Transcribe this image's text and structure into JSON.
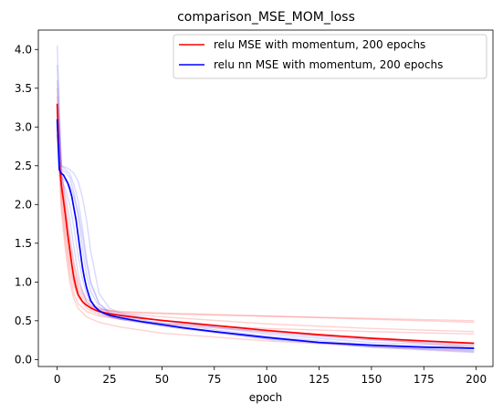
{
  "chart_data": {
    "type": "line",
    "title": "comparison_MSE_MOM_loss",
    "xlabel": "epoch",
    "ylabel": "",
    "xlim": [
      -9,
      208
    ],
    "ylim": [
      -0.09,
      4.25
    ],
    "xticks": [
      "0",
      "25",
      "50",
      "75",
      "100",
      "125",
      "150",
      "175",
      "200"
    ],
    "yticks": [
      "0.0",
      "0.5",
      "1.0",
      "1.5",
      "2.0",
      "2.5",
      "3.0",
      "3.5",
      "4.0"
    ],
    "grid": false,
    "legend_position": "top-right",
    "colors": {
      "red": "#ff0000",
      "blue": "#0000ff",
      "faint_red": "#ff6666",
      "faint_blue": "#6666ff"
    },
    "series": [
      {
        "name": "relu MSE with momentum, 200 epochs",
        "color": "#ff0000",
        "x": [
          0,
          1,
          2,
          3,
          4,
          5,
          6,
          7,
          8,
          9,
          10,
          12,
          14,
          16,
          18,
          20,
          25,
          30,
          40,
          50,
          60,
          75,
          100,
          125,
          150,
          175,
          199
        ],
        "y": [
          3.3,
          2.55,
          2.25,
          2.05,
          1.85,
          1.62,
          1.42,
          1.22,
          1.05,
          0.93,
          0.84,
          0.75,
          0.7,
          0.665,
          0.64,
          0.62,
          0.59,
          0.57,
          0.535,
          0.505,
          0.48,
          0.44,
          0.375,
          0.32,
          0.275,
          0.24,
          0.21
        ]
      },
      {
        "name": "relu nn MSE with momentum, 200 epochs",
        "color": "#0000ff",
        "x": [
          0,
          1,
          2,
          3,
          4,
          5,
          6,
          7,
          8,
          9,
          10,
          11,
          12,
          13,
          14,
          15,
          16,
          18,
          20,
          22,
          25,
          30,
          40,
          50,
          60,
          75,
          100,
          125,
          150,
          175,
          199
        ],
        "y": [
          3.1,
          2.45,
          2.4,
          2.38,
          2.33,
          2.28,
          2.2,
          2.1,
          1.95,
          1.8,
          1.6,
          1.4,
          1.2,
          1.05,
          0.93,
          0.84,
          0.76,
          0.68,
          0.63,
          0.6,
          0.57,
          0.54,
          0.49,
          0.45,
          0.41,
          0.36,
          0.285,
          0.22,
          0.185,
          0.16,
          0.145
        ]
      }
    ],
    "faint_runs": {
      "red": [
        {
          "x": [
            0,
            2,
            4,
            6,
            8,
            10,
            14,
            20,
            30,
            50,
            100,
            150,
            199
          ],
          "y": [
            3.0,
            2.1,
            1.6,
            1.2,
            0.95,
            0.8,
            0.7,
            0.64,
            0.61,
            0.59,
            0.56,
            0.52,
            0.48
          ]
        },
        {
          "x": [
            0,
            2,
            4,
            6,
            8,
            10,
            14,
            20,
            30,
            50,
            100,
            150,
            199
          ],
          "y": [
            3.4,
            2.3,
            1.8,
            1.4,
            1.1,
            0.9,
            0.72,
            0.65,
            0.62,
            0.6,
            0.56,
            0.53,
            0.5
          ]
        },
        {
          "x": [
            0,
            2,
            4,
            6,
            8,
            10,
            14,
            20,
            30,
            50,
            100,
            150,
            199
          ],
          "y": [
            3.2,
            2.0,
            1.5,
            1.1,
            0.85,
            0.72,
            0.62,
            0.56,
            0.52,
            0.46,
            0.36,
            0.26,
            0.18
          ]
        },
        {
          "x": [
            0,
            2,
            4,
            6,
            8,
            10,
            14,
            20,
            30,
            50,
            100,
            150,
            199
          ],
          "y": [
            3.5,
            2.4,
            1.9,
            1.5,
            1.2,
            0.95,
            0.75,
            0.63,
            0.57,
            0.5,
            0.38,
            0.27,
            0.15
          ]
        },
        {
          "x": [
            0,
            2,
            4,
            6,
            8,
            10,
            14,
            20,
            30,
            50,
            100,
            150,
            199
          ],
          "y": [
            2.9,
            1.9,
            1.4,
            1.0,
            0.78,
            0.66,
            0.55,
            0.48,
            0.42,
            0.34,
            0.24,
            0.17,
            0.1
          ]
        },
        {
          "x": [
            0,
            2,
            4,
            6,
            8,
            10,
            14,
            20,
            30,
            50,
            100,
            150,
            199
          ],
          "y": [
            3.1,
            2.2,
            1.7,
            1.3,
            1.0,
            0.82,
            0.66,
            0.58,
            0.52,
            0.47,
            0.4,
            0.36,
            0.33
          ]
        },
        {
          "x": [
            0,
            2,
            4,
            6,
            8,
            10,
            14,
            20,
            30,
            50,
            100,
            150,
            199
          ],
          "y": [
            3.3,
            2.5,
            2.0,
            1.6,
            1.25,
            1.0,
            0.78,
            0.66,
            0.6,
            0.55,
            0.46,
            0.4,
            0.36
          ]
        }
      ],
      "blue": [
        {
          "x": [
            0,
            2,
            4,
            6,
            8,
            10,
            12,
            14,
            16,
            20,
            25,
            30,
            50,
            100,
            150,
            199
          ],
          "y": [
            4.05,
            2.5,
            2.45,
            2.4,
            2.25,
            2.05,
            1.7,
            1.3,
            1.0,
            0.72,
            0.62,
            0.58,
            0.5,
            0.33,
            0.22,
            0.17
          ]
        },
        {
          "x": [
            0,
            2,
            4,
            6,
            8,
            10,
            12,
            14,
            16,
            20,
            25,
            30,
            50,
            100,
            150,
            199
          ],
          "y": [
            3.6,
            2.45,
            2.42,
            2.35,
            2.15,
            1.85,
            1.45,
            1.1,
            0.88,
            0.68,
            0.6,
            0.56,
            0.47,
            0.3,
            0.19,
            0.14
          ]
        },
        {
          "x": [
            0,
            2,
            4,
            6,
            8,
            10,
            12,
            14,
            16,
            20,
            25,
            30,
            50,
            100,
            150,
            199
          ],
          "y": [
            3.2,
            2.3,
            2.2,
            2.0,
            1.7,
            1.35,
            1.05,
            0.85,
            0.74,
            0.63,
            0.56,
            0.52,
            0.43,
            0.26,
            0.16,
            0.11
          ]
        },
        {
          "x": [
            0,
            2,
            4,
            6,
            8,
            10,
            12,
            14,
            16,
            20,
            25,
            30,
            50,
            100,
            150,
            199
          ],
          "y": [
            2.9,
            2.35,
            2.3,
            2.25,
            2.1,
            1.9,
            1.6,
            1.25,
            0.98,
            0.72,
            0.6,
            0.55,
            0.45,
            0.27,
            0.17,
            0.12
          ]
        },
        {
          "x": [
            0,
            2,
            4,
            6,
            8,
            10,
            12,
            14,
            16,
            20,
            25,
            30,
            50,
            100,
            150,
            199
          ],
          "y": [
            3.3,
            2.4,
            2.1,
            1.8,
            1.45,
            1.1,
            0.88,
            0.75,
            0.68,
            0.6,
            0.55,
            0.52,
            0.44,
            0.28,
            0.16,
            0.09
          ]
        },
        {
          "x": [
            0,
            2,
            4,
            6,
            8,
            10,
            12,
            14,
            16,
            20,
            25,
            30,
            50,
            100,
            150,
            199
          ],
          "y": [
            3.8,
            2.5,
            2.48,
            2.45,
            2.4,
            2.3,
            2.1,
            1.8,
            1.4,
            0.85,
            0.66,
            0.6,
            0.5,
            0.35,
            0.25,
            0.2
          ]
        }
      ]
    }
  }
}
